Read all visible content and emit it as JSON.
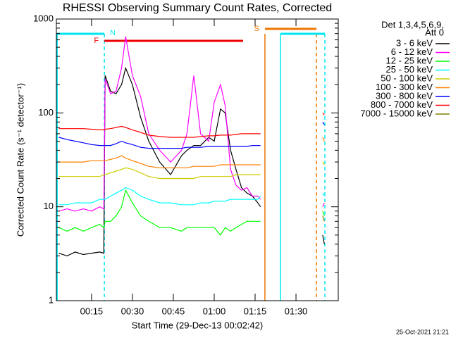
{
  "chart_data": {
    "type": "line",
    "title": "RHESSI Observing Summary Count Rates, Corrected",
    "x_label": "Start Time (29-Dec-13 00:02:42)",
    "y_label": "Corrected Count Rate (s⁻¹ detector⁻¹)",
    "legend_title": [
      "Det 1,3,4,5,6,9,",
      "Att 0"
    ],
    "timestamp": "25-Oct-2021 21:21",
    "log_y": true,
    "xlim": [
      2.1,
      105.5
    ],
    "ylim": [
      1,
      1000
    ],
    "yticks": [
      1,
      10,
      100,
      1000
    ],
    "xticks": [
      {
        "value": 15,
        "label": "00:15"
      },
      {
        "value": 30,
        "label": "00:30"
      },
      {
        "value": 45,
        "label": "00:45"
      },
      {
        "value": 60,
        "label": "01:00"
      },
      {
        "value": 75,
        "label": "01:15"
      },
      {
        "value": 90,
        "label": "01:30"
      }
    ],
    "x": [
      3,
      6,
      9,
      12,
      15,
      18,
      19.5,
      20,
      22,
      24,
      26,
      27.5,
      30,
      33,
      36,
      40,
      44,
      48,
      50,
      52.5,
      55,
      58,
      60,
      62.3,
      64,
      66,
      68,
      70,
      72,
      74,
      76,
      77,
      88,
      99.8,
      100.4
    ],
    "series": [
      {
        "name": "3 - 6 keV",
        "color": "#000000",
        "values": [
          3.2,
          3.0,
          3.3,
          3.1,
          3.2,
          3.3,
          3.2,
          250,
          170,
          160,
          200,
          300,
          200,
          90,
          50,
          30,
          22,
          35,
          40,
          45,
          45,
          55,
          50,
          110,
          100,
          40,
          25,
          16,
          14,
          13,
          11,
          10,
          null,
          5,
          4
        ]
      },
      {
        "name": "6 - 12 keV",
        "color": "#ff00ff",
        "values": [
          9,
          9.5,
          9,
          9.5,
          9,
          10,
          9.5,
          230,
          160,
          170,
          300,
          650,
          250,
          150,
          60,
          40,
          30,
          40,
          60,
          250,
          60,
          50,
          130,
          200,
          120,
          25,
          17,
          15,
          16,
          13,
          13,
          12,
          null,
          10,
          11
        ]
      },
      {
        "name": "12 - 25 keV",
        "color": "#00ff00",
        "values": [
          6,
          5.5,
          6,
          5.5,
          6,
          6.5,
          6,
          7,
          7,
          8,
          10,
          15,
          11,
          8,
          7,
          6,
          6,
          5.5,
          6,
          6,
          6,
          6,
          6,
          5,
          6,
          5.5,
          6,
          6.5,
          7,
          7,
          7,
          7,
          null,
          9,
          8
        ]
      },
      {
        "name": "25 - 50 keV",
        "color": "#00ffff",
        "values": [
          10.5,
          10.5,
          11,
          11,
          11,
          12,
          12,
          12,
          13,
          14,
          15,
          16,
          15,
          13,
          12,
          11,
          11,
          10.5,
          10.5,
          10.5,
          11,
          11,
          11.5,
          11.5,
          11.5,
          12,
          12,
          12,
          12,
          12,
          12,
          13,
          null,
          14,
          13
        ]
      },
      {
        "name": "50 - 100 keV",
        "color": "#cccc00",
        "values": [
          21,
          21,
          21,
          21,
          21,
          21,
          22,
          22,
          23,
          24,
          25,
          26,
          25,
          23,
          21,
          20,
          20,
          20,
          20,
          20,
          21,
          21,
          21,
          21,
          21,
          21,
          22,
          22,
          22,
          22,
          22,
          22,
          null,
          30,
          28
        ]
      },
      {
        "name": "100 - 300 keV",
        "color": "#ff8000",
        "values": [
          30,
          30,
          30,
          30,
          31,
          31,
          31,
          31,
          32,
          33,
          35,
          33,
          31,
          29,
          27,
          26,
          26,
          26,
          26,
          27,
          27,
          27,
          27,
          28,
          28,
          28,
          28,
          28,
          28,
          28,
          28,
          28,
          null,
          55,
          50
        ]
      },
      {
        "name": "300 - 800 keV",
        "color": "#0000ff",
        "values": [
          55,
          52,
          50,
          48,
          46,
          45,
          45,
          45,
          45,
          47,
          50,
          48,
          46,
          43,
          42,
          42,
          42,
          42,
          43,
          43,
          43,
          44,
          44,
          44,
          44,
          44,
          44,
          44,
          44,
          45,
          45,
          45,
          null,
          80,
          75
        ]
      },
      {
        "name": "800 - 7000 keV",
        "color": "#ff0000",
        "values": [
          68,
          68,
          68,
          68,
          67,
          66,
          66,
          67,
          68,
          70,
          72,
          70,
          66,
          62,
          58,
          56,
          55,
          55,
          55,
          55,
          56,
          57,
          57,
          58,
          58,
          58,
          59,
          60,
          60,
          60,
          60,
          60,
          null,
          100,
          95
        ]
      },
      {
        "name": "7000 - 15000 keV",
        "color": "#808000",
        "values": [
          null,
          null,
          null,
          null,
          null,
          null,
          null,
          null,
          null,
          null,
          null,
          null,
          null,
          null,
          null,
          null,
          null,
          null,
          null,
          null,
          null,
          null,
          null,
          null,
          null,
          null,
          null,
          null,
          null,
          null,
          null,
          null,
          null,
          8,
          7
        ]
      }
    ],
    "flags": [
      {
        "label": "N",
        "color": "#00e5ee",
        "intervals": [
          [
            2.1,
            19.7
          ],
          [
            84.3,
            100.6
          ]
        ]
      },
      {
        "label": "F",
        "color": "#ee0000",
        "intervals": [
          [
            19.7,
            70.6
          ]
        ]
      },
      {
        "label": "S",
        "color": "#ee7600",
        "intervals": [
          [
            78.6,
            97.5
          ]
        ]
      }
    ],
    "vlines": [
      {
        "x": 2.4,
        "color": "#00e5ee",
        "dashed": false
      },
      {
        "x": 19.7,
        "color": "#00e5ee",
        "dashed": true
      },
      {
        "x": 78.6,
        "color": "#ee7600",
        "dashed": false
      },
      {
        "x": 84.3,
        "color": "#00e5ee",
        "dashed": false
      },
      {
        "x": 97.5,
        "color": "#ee7600",
        "dashed": true
      },
      {
        "x": 100.6,
        "color": "#00e5ee",
        "dashed": true
      }
    ]
  }
}
